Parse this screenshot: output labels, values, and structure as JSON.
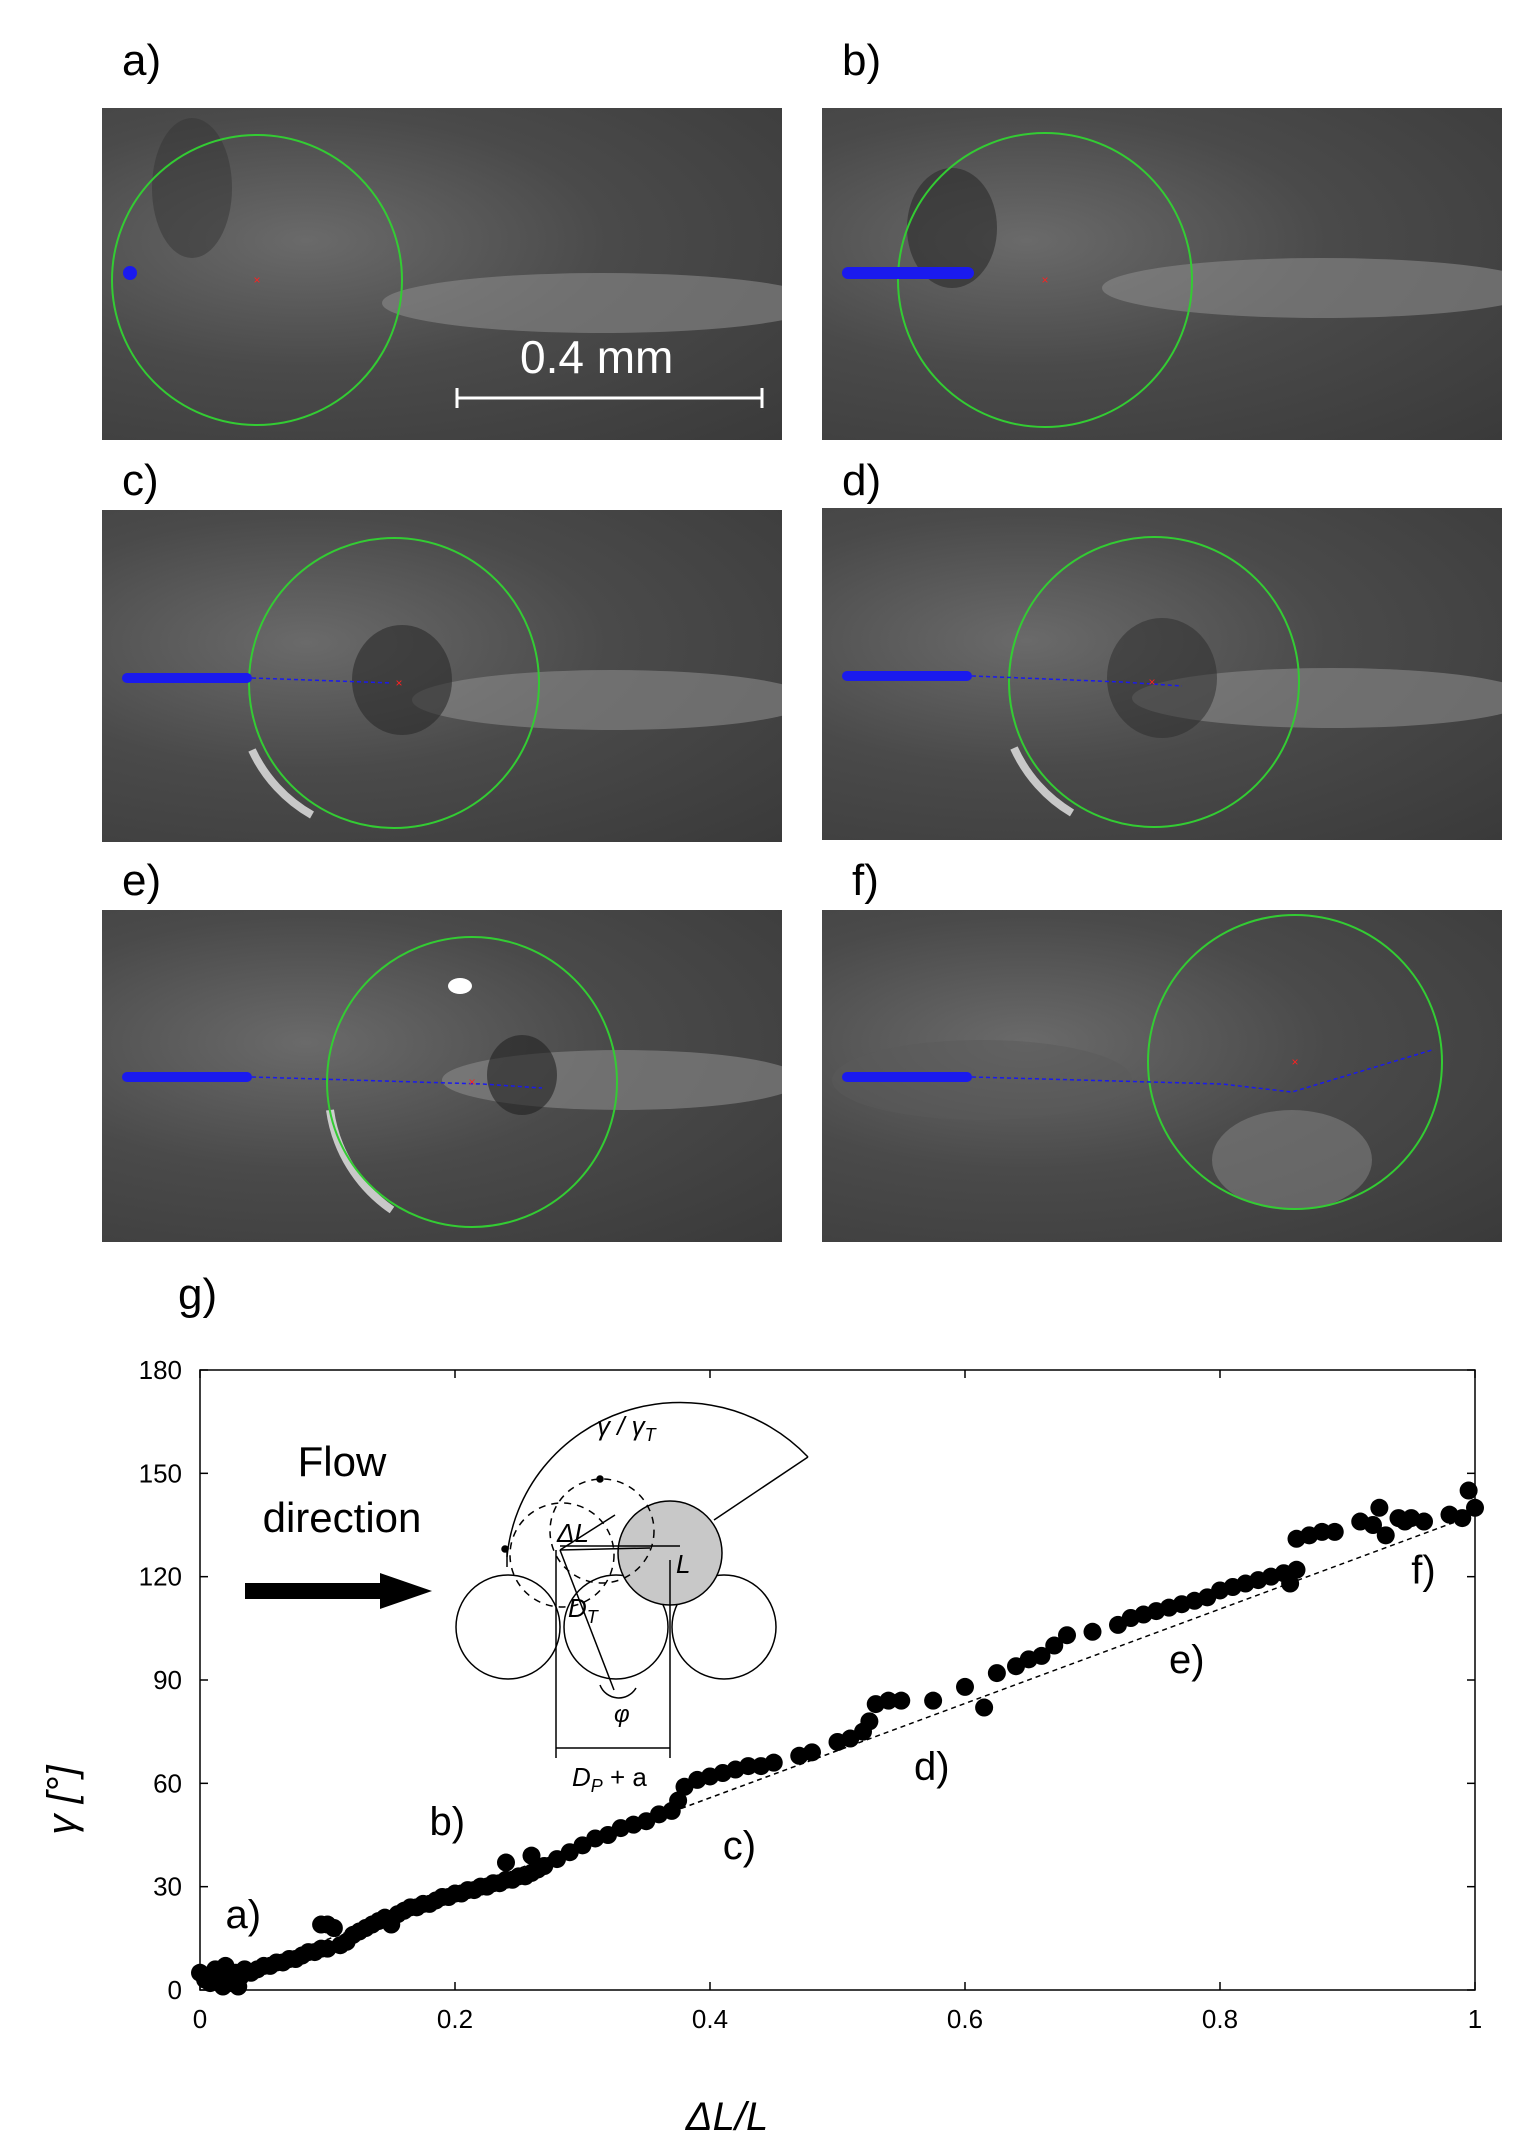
{
  "panels": [
    {
      "label": "a)"
    },
    {
      "label": "b)"
    },
    {
      "label": "c)"
    },
    {
      "label": "d)"
    },
    {
      "label": "e)"
    },
    {
      "label": "f)"
    }
  ],
  "scale_bar": {
    "text": "0.4 mm"
  },
  "chart_panel_label": "g)",
  "flow": {
    "line1": "Flow",
    "line2": "direction"
  },
  "inset": {
    "gamma": "γ / γ",
    "gamma_sub": "T",
    "dL": "ΔL",
    "L": "L",
    "DT": "D",
    "DT_sub": "T",
    "phi": "φ",
    "DP": "D",
    "DP_sub": "P",
    "DP_tail": " + a"
  },
  "colors": {
    "circle": "#33cc33",
    "trail": "#1a1aee",
    "center": "#ff2020",
    "marker": "#000000"
  },
  "chart_data": {
    "type": "scatter",
    "xlabel": "ΔL/L",
    "ylabel": "γ [°]",
    "xlim": [
      0,
      1
    ],
    "ylim": [
      0,
      180
    ],
    "xticks": [
      "0",
      "0.2",
      "0.4",
      "0.6",
      "0.8",
      "1"
    ],
    "yticks": [
      "0",
      "30",
      "60",
      "90",
      "120",
      "150",
      "180"
    ],
    "series": [
      {
        "points": [
          [
            0.0,
            5
          ],
          [
            0.004,
            3
          ],
          [
            0.008,
            2
          ],
          [
            0.012,
            6
          ],
          [
            0.015,
            4
          ],
          [
            0.018,
            1
          ],
          [
            0.02,
            7
          ],
          [
            0.022,
            3
          ],
          [
            0.025,
            2
          ],
          [
            0.028,
            5
          ],
          [
            0.03,
            1
          ],
          [
            0.032,
            4
          ],
          [
            0.035,
            6
          ],
          [
            0.04,
            5
          ],
          [
            0.045,
            6
          ],
          [
            0.05,
            7
          ],
          [
            0.055,
            7
          ],
          [
            0.06,
            8
          ],
          [
            0.065,
            8
          ],
          [
            0.07,
            9
          ],
          [
            0.075,
            9
          ],
          [
            0.08,
            10
          ],
          [
            0.085,
            11
          ],
          [
            0.09,
            11
          ],
          [
            0.095,
            12
          ],
          [
            0.1,
            12
          ],
          [
            0.095,
            19
          ],
          [
            0.1,
            19
          ],
          [
            0.105,
            18
          ],
          [
            0.11,
            13
          ],
          [
            0.115,
            14
          ],
          [
            0.12,
            16
          ],
          [
            0.125,
            17
          ],
          [
            0.13,
            18
          ],
          [
            0.135,
            19
          ],
          [
            0.14,
            20
          ],
          [
            0.145,
            21
          ],
          [
            0.15,
            19
          ],
          [
            0.155,
            22
          ],
          [
            0.16,
            23
          ],
          [
            0.165,
            24
          ],
          [
            0.17,
            24
          ],
          [
            0.175,
            25
          ],
          [
            0.18,
            25
          ],
          [
            0.185,
            26
          ],
          [
            0.19,
            27
          ],
          [
            0.195,
            27
          ],
          [
            0.2,
            28
          ],
          [
            0.205,
            28
          ],
          [
            0.21,
            29
          ],
          [
            0.215,
            29
          ],
          [
            0.22,
            30
          ],
          [
            0.225,
            30
          ],
          [
            0.23,
            31
          ],
          [
            0.235,
            31
          ],
          [
            0.24,
            32
          ],
          [
            0.24,
            37
          ],
          [
            0.245,
            32
          ],
          [
            0.25,
            33
          ],
          [
            0.255,
            33
          ],
          [
            0.26,
            34
          ],
          [
            0.26,
            39
          ],
          [
            0.265,
            35
          ],
          [
            0.27,
            36
          ],
          [
            0.28,
            38
          ],
          [
            0.29,
            40
          ],
          [
            0.3,
            42
          ],
          [
            0.31,
            44
          ],
          [
            0.32,
            45
          ],
          [
            0.33,
            47
          ],
          [
            0.34,
            48
          ],
          [
            0.35,
            49
          ],
          [
            0.36,
            51
          ],
          [
            0.37,
            52
          ],
          [
            0.375,
            55
          ],
          [
            0.38,
            59
          ],
          [
            0.39,
            61
          ],
          [
            0.4,
            62
          ],
          [
            0.41,
            63
          ],
          [
            0.42,
            64
          ],
          [
            0.43,
            65
          ],
          [
            0.44,
            65
          ],
          [
            0.45,
            66
          ],
          [
            0.47,
            68
          ],
          [
            0.48,
            69
          ],
          [
            0.5,
            72
          ],
          [
            0.51,
            73
          ],
          [
            0.52,
            75
          ],
          [
            0.525,
            78
          ],
          [
            0.53,
            83
          ],
          [
            0.54,
            84
          ],
          [
            0.55,
            84
          ],
          [
            0.575,
            84
          ],
          [
            0.6,
            88
          ],
          [
            0.615,
            82
          ],
          [
            0.625,
            92
          ],
          [
            0.64,
            94
          ],
          [
            0.65,
            96
          ],
          [
            0.66,
            97
          ],
          [
            0.67,
            100
          ],
          [
            0.68,
            103
          ],
          [
            0.7,
            104
          ],
          [
            0.72,
            106
          ],
          [
            0.73,
            108
          ],
          [
            0.74,
            109
          ],
          [
            0.75,
            110
          ],
          [
            0.76,
            111
          ],
          [
            0.77,
            112
          ],
          [
            0.78,
            113
          ],
          [
            0.79,
            114
          ],
          [
            0.8,
            116
          ],
          [
            0.81,
            117
          ],
          [
            0.82,
            118
          ],
          [
            0.83,
            119
          ],
          [
            0.84,
            120
          ],
          [
            0.85,
            121
          ],
          [
            0.855,
            118
          ],
          [
            0.86,
            122
          ],
          [
            0.86,
            131
          ],
          [
            0.87,
            132
          ],
          [
            0.88,
            133
          ],
          [
            0.89,
            133
          ],
          [
            0.91,
            136
          ],
          [
            0.92,
            135
          ],
          [
            0.925,
            140
          ],
          [
            0.93,
            132
          ],
          [
            0.94,
            137
          ],
          [
            0.945,
            136
          ],
          [
            0.95,
            137
          ],
          [
            0.96,
            136
          ],
          [
            0.98,
            138
          ],
          [
            0.99,
            137
          ],
          [
            1.0,
            140
          ],
          [
            0.995,
            145
          ]
        ]
      }
    ],
    "trend_line": [
      [
        0.0,
        1
      ],
      [
        1.0,
        138
      ]
    ],
    "annotations": [
      {
        "text": "a)",
        "x": 0.02,
        "y": 18
      },
      {
        "text": "b)",
        "x": 0.18,
        "y": 45
      },
      {
        "text": "c)",
        "x": 0.41,
        "y": 38
      },
      {
        "text": "d)",
        "x": 0.56,
        "y": 61
      },
      {
        "text": "e)",
        "x": 0.76,
        "y": 92
      },
      {
        "text": "f)",
        "x": 0.95,
        "y": 118
      }
    ]
  }
}
